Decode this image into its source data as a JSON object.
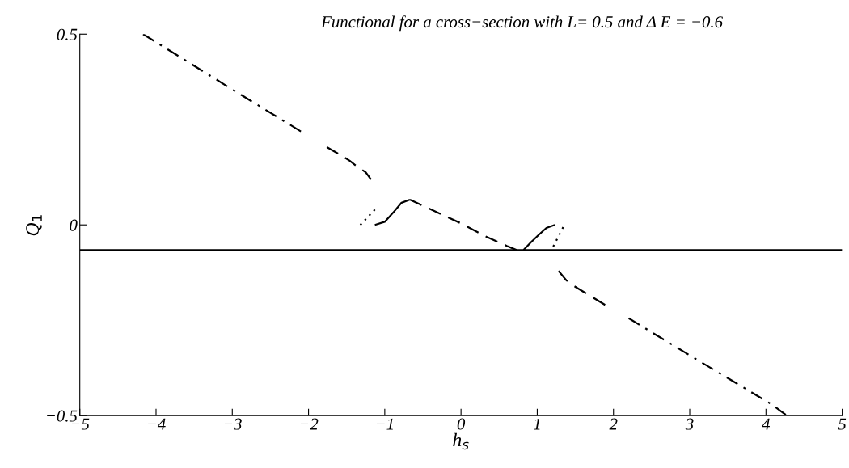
{
  "chart_data": {
    "type": "line",
    "title": "Functional for a cross−section with L= 0.5 and Δ E = −0.6",
    "xlabel": "h$_{s}$",
    "ylabel": "Q$_{1}$",
    "xlim": [
      -5,
      5
    ],
    "ylim": [
      -0.5,
      0.5
    ],
    "xticks": [
      {
        "value": -5,
        "label": "−5"
      },
      {
        "value": -4,
        "label": "−4"
      },
      {
        "value": -3,
        "label": "−3"
      },
      {
        "value": -2,
        "label": "−2"
      },
      {
        "value": -1,
        "label": "−1"
      },
      0,
      1,
      2,
      3,
      4,
      5
    ],
    "yticks": [
      {
        "value": -0.5,
        "label": "−0.5"
      },
      0,
      0.5
    ],
    "grid": false,
    "legend": false,
    "series": [
      {
        "color": "#000000",
        "line_style": "dashdot",
        "x": [
          -4.17,
          -3.0,
          -2.1
        ],
        "values": [
          0.5,
          0.355,
          0.245
        ]
      },
      {
        "color": "#000000",
        "line_style": "dashed",
        "x": [
          -1.76,
          -1.56,
          -1.46,
          -1.35,
          -1.25,
          -1.18
        ],
        "values": [
          0.204,
          0.181,
          0.168,
          0.151,
          0.138,
          0.119
        ]
      },
      {
        "color": "#000000",
        "line_style": "dotted",
        "x": [
          -1.32,
          -1.13
        ],
        "values": [
          0.0,
          0.04
        ]
      },
      {
        "color": "#000000",
        "line_style": "solid",
        "x": [
          -1.13,
          -1.0,
          -0.89,
          -0.78,
          -0.67
        ],
        "values": [
          0.0,
          0.008,
          0.032,
          0.058,
          0.066
        ]
      },
      {
        "color": "#000000",
        "line_style": "dashed",
        "x": [
          -0.67,
          0.0,
          0.3,
          0.6,
          0.73
        ],
        "values": [
          0.066,
          0.004,
          -0.028,
          -0.055,
          -0.066
        ]
      },
      {
        "color": "#000000",
        "line_style": "solid",
        "x": [
          0.82,
          0.92,
          1.02,
          1.12,
          1.23
        ],
        "values": [
          -0.066,
          -0.045,
          -0.026,
          -0.008,
          0.0
        ]
      },
      {
        "color": "#000000",
        "line_style": "dotted",
        "x": [
          1.21,
          1.34
        ],
        "values": [
          -0.057,
          -0.006
        ]
      },
      {
        "color": "#000000",
        "line_style": "dashed",
        "x": [
          1.28,
          1.38,
          1.48,
          1.89
        ],
        "values": [
          -0.121,
          -0.145,
          -0.16,
          -0.21
        ]
      },
      {
        "color": "#000000",
        "line_style": "dashdot",
        "x": [
          2.2,
          3.0,
          4.07,
          4.26
        ],
        "values": [
          -0.245,
          -0.342,
          -0.47,
          -0.498
        ]
      },
      {
        "color": "#000000",
        "line_style": "solid",
        "x": [
          -5,
          5
        ],
        "values": [
          -0.066,
          -0.066
        ]
      }
    ]
  }
}
